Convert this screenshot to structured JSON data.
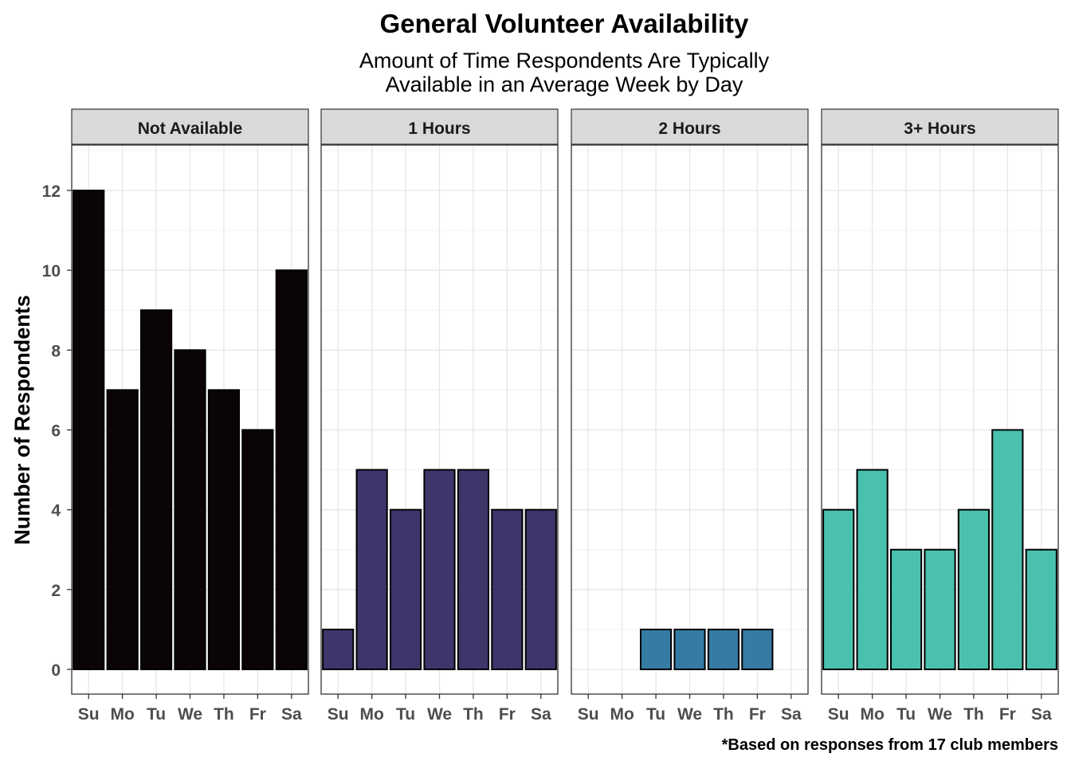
{
  "chart_data": {
    "type": "bar",
    "title": "General Volunteer Availability",
    "subtitle_lines": [
      "Amount of Time Respondents Are Typically",
      "Available in an Average Week by Day"
    ],
    "ylabel": "Number of Respondents",
    "xlabel": "",
    "caption": "*Based on responses from 17 club members",
    "categories": [
      "Su",
      "Mo",
      "Tu",
      "We",
      "Th",
      "Fr",
      "Sa"
    ],
    "ylim": [
      0,
      13
    ],
    "yticks": [
      0,
      2,
      4,
      6,
      8,
      10,
      12
    ],
    "grid": true,
    "legend": "none",
    "facets": [
      {
        "name": "Not Available",
        "color": "#0b0405",
        "values": [
          12,
          7,
          9,
          8,
          7,
          6,
          10
        ]
      },
      {
        "name": "1 Hours",
        "color": "#3e356b",
        "values": [
          1,
          5,
          4,
          5,
          5,
          4,
          4
        ]
      },
      {
        "name": "2 Hours",
        "color": "#357ba3",
        "values": [
          0,
          0,
          1,
          1,
          1,
          1,
          0
        ]
      },
      {
        "name": "3+ Hours",
        "color": "#49c1ad",
        "values": [
          4,
          5,
          3,
          3,
          4,
          6,
          3
        ]
      }
    ]
  }
}
